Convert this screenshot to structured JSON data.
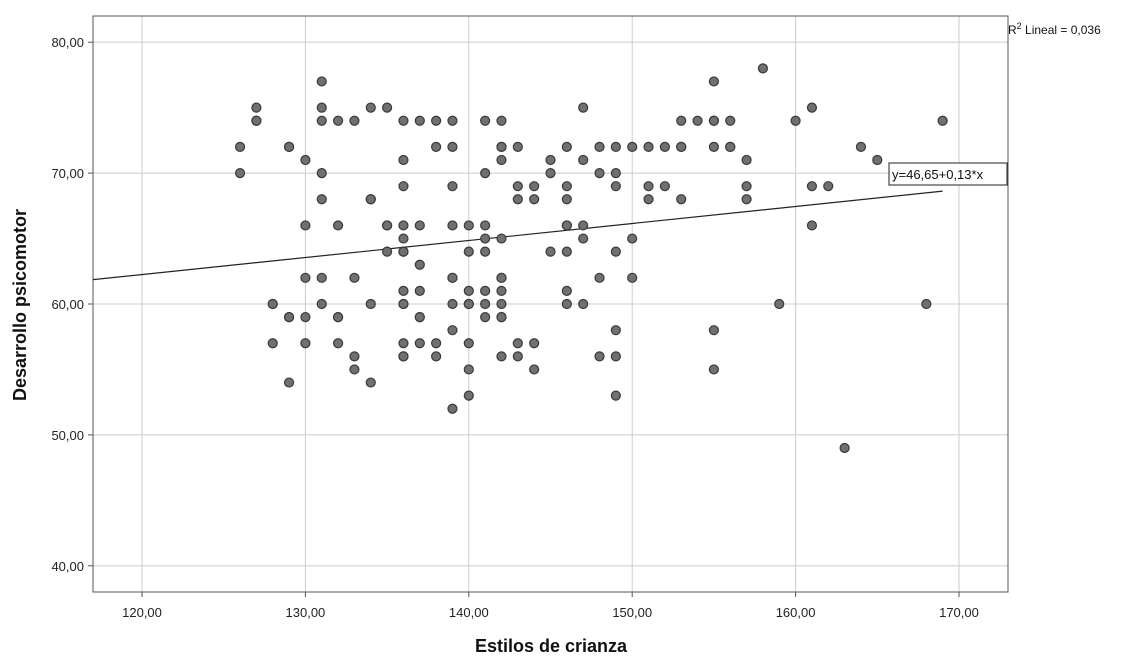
{
  "chart_data": {
    "type": "scatter",
    "xlabel": "Estilos de crianza",
    "ylabel": "Desarrollo psicomotor",
    "xlim": [
      117,
      173
    ],
    "ylim": [
      38,
      82
    ],
    "x_ticks": [
      120,
      130,
      140,
      150,
      160,
      170
    ],
    "x_tick_labels": [
      "120,00",
      "130,00",
      "140,00",
      "150,00",
      "160,00",
      "170,00"
    ],
    "y_ticks": [
      40,
      50,
      60,
      70,
      80
    ],
    "y_tick_labels": [
      "40,00",
      "50,00",
      "60,00",
      "70,00",
      "80,00"
    ],
    "grid": true,
    "fit_line": {
      "intercept": 46.65,
      "slope": 0.13,
      "label": "y=46,65+0,13*x"
    },
    "r2_prefix": "R",
    "r2_sup": "2",
    "r2_suffix": " Lineal = 0,036",
    "colors": {
      "point_fill": "#707070",
      "point_stroke": "#3a3a3a",
      "grid": "#cccccc",
      "frame": "#555555",
      "line": "#222222"
    },
    "points": [
      [
        126,
        72
      ],
      [
        126,
        70
      ],
      [
        127,
        75
      ],
      [
        127,
        74
      ],
      [
        127,
        74
      ],
      [
        128,
        60
      ],
      [
        128,
        60
      ],
      [
        128,
        57
      ],
      [
        129,
        72
      ],
      [
        129,
        72
      ],
      [
        129,
        59
      ],
      [
        129,
        59
      ],
      [
        129,
        54
      ],
      [
        130,
        71
      ],
      [
        130,
        66
      ],
      [
        130,
        62
      ],
      [
        130,
        59
      ],
      [
        130,
        57
      ],
      [
        131,
        77
      ],
      [
        131,
        75
      ],
      [
        131,
        74
      ],
      [
        131,
        70
      ],
      [
        131,
        68
      ],
      [
        131,
        62
      ],
      [
        131,
        60
      ],
      [
        132,
        74
      ],
      [
        132,
        66
      ],
      [
        132,
        59
      ],
      [
        132,
        59
      ],
      [
        132,
        57
      ],
      [
        133,
        74
      ],
      [
        133,
        62
      ],
      [
        133,
        56
      ],
      [
        133,
        55
      ],
      [
        134,
        75
      ],
      [
        134,
        68
      ],
      [
        134,
        68
      ],
      [
        134,
        60
      ],
      [
        134,
        54
      ],
      [
        135,
        75
      ],
      [
        135,
        66
      ],
      [
        135,
        66
      ],
      [
        135,
        64
      ],
      [
        136,
        74
      ],
      [
        136,
        71
      ],
      [
        136,
        69
      ],
      [
        136,
        66
      ],
      [
        136,
        65
      ],
      [
        136,
        64
      ],
      [
        136,
        64
      ],
      [
        136,
        61
      ],
      [
        136,
        60
      ],
      [
        136,
        60
      ],
      [
        136,
        57
      ],
      [
        136,
        56
      ],
      [
        136,
        56
      ],
      [
        137,
        74
      ],
      [
        137,
        66
      ],
      [
        137,
        63
      ],
      [
        137,
        61
      ],
      [
        137,
        59
      ],
      [
        137,
        59
      ],
      [
        137,
        57
      ],
      [
        138,
        74
      ],
      [
        138,
        72
      ],
      [
        138,
        57
      ],
      [
        138,
        56
      ],
      [
        139,
        74
      ],
      [
        139,
        72
      ],
      [
        139,
        69
      ],
      [
        139,
        66
      ],
      [
        139,
        62
      ],
      [
        139,
        62
      ],
      [
        139,
        60
      ],
      [
        139,
        58
      ],
      [
        139,
        52
      ],
      [
        140,
        66
      ],
      [
        140,
        64
      ],
      [
        140,
        61
      ],
      [
        140,
        60
      ],
      [
        140,
        60
      ],
      [
        140,
        57
      ],
      [
        140,
        55
      ],
      [
        140,
        53
      ],
      [
        141,
        74
      ],
      [
        141,
        70
      ],
      [
        141,
        66
      ],
      [
        141,
        65
      ],
      [
        141,
        64
      ],
      [
        141,
        61
      ],
      [
        141,
        60
      ],
      [
        141,
        59
      ],
      [
        142,
        74
      ],
      [
        142,
        72
      ],
      [
        142,
        72
      ],
      [
        142,
        71
      ],
      [
        142,
        65
      ],
      [
        142,
        62
      ],
      [
        142,
        62
      ],
      [
        142,
        61
      ],
      [
        142,
        60
      ],
      [
        142,
        59
      ],
      [
        142,
        59
      ],
      [
        142,
        56
      ],
      [
        143,
        72
      ],
      [
        143,
        69
      ],
      [
        143,
        68
      ],
      [
        143,
        57
      ],
      [
        143,
        56
      ],
      [
        144,
        69
      ],
      [
        144,
        68
      ],
      [
        144,
        57
      ],
      [
        144,
        55
      ],
      [
        145,
        71
      ],
      [
        145,
        70
      ],
      [
        145,
        64
      ],
      [
        146,
        72
      ],
      [
        146,
        69
      ],
      [
        146,
        68
      ],
      [
        146,
        66
      ],
      [
        146,
        66
      ],
      [
        146,
        64
      ],
      [
        146,
        61
      ],
      [
        146,
        60
      ],
      [
        147,
        75
      ],
      [
        147,
        71
      ],
      [
        147,
        66
      ],
      [
        147,
        65
      ],
      [
        147,
        60
      ],
      [
        148,
        72
      ],
      [
        148,
        70
      ],
      [
        148,
        62
      ],
      [
        148,
        56
      ],
      [
        149,
        72
      ],
      [
        149,
        70
      ],
      [
        149,
        69
      ],
      [
        149,
        64
      ],
      [
        149,
        58
      ],
      [
        149,
        56
      ],
      [
        149,
        53
      ],
      [
        150,
        72
      ],
      [
        150,
        65
      ],
      [
        150,
        62
      ],
      [
        151,
        72
      ],
      [
        151,
        69
      ],
      [
        151,
        68
      ],
      [
        152,
        72
      ],
      [
        152,
        69
      ],
      [
        153,
        74
      ],
      [
        153,
        72
      ],
      [
        153,
        72
      ],
      [
        153,
        68
      ],
      [
        154,
        74
      ],
      [
        155,
        77
      ],
      [
        155,
        74
      ],
      [
        155,
        74
      ],
      [
        155,
        72
      ],
      [
        155,
        58
      ],
      [
        155,
        55
      ],
      [
        156,
        74
      ],
      [
        156,
        72
      ],
      [
        156,
        72
      ],
      [
        157,
        71
      ],
      [
        157,
        69
      ],
      [
        157,
        68
      ],
      [
        158,
        78
      ],
      [
        159,
        60
      ],
      [
        160,
        74
      ],
      [
        161,
        75
      ],
      [
        161,
        69
      ],
      [
        161,
        66
      ],
      [
        162,
        69
      ],
      [
        163,
        49
      ],
      [
        164,
        72
      ],
      [
        165,
        71
      ],
      [
        168,
        60
      ],
      [
        169,
        74
      ]
    ]
  }
}
